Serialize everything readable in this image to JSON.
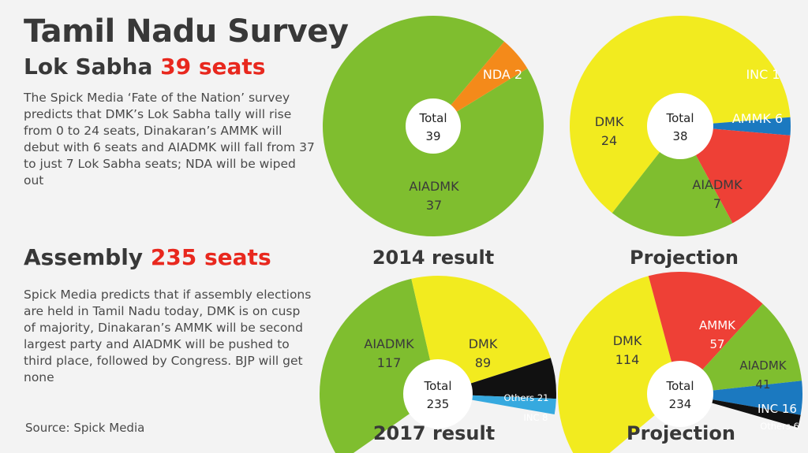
{
  "header": {
    "title": "Tamil Nadu Survey",
    "lok_sabha_prefix": "Lok Sabha",
    "lok_sabha_seats": "39 seats",
    "lok_sabha_text": "The Spick Media ‘Fate of the Nation’ survey predicts that DMK’s Lok Sabha tally will rise from 0 to 24 seats, Dinakaran’s AMMK will debut with 6 seats and AIADMK will fall from 37 to just 7 Lok Sabha seats; NDA will be wiped out",
    "assembly_prefix": "Assembly",
    "assembly_seats": "235 seats",
    "assembly_text": "Spick Media predicts that if assembly elections are held in Tamil Nadu today, DMK is on cusp of majority, Dinakaran’s AMMK will be second largest party and AIADMK will be pushed to third place, followed by Congress. BJP will get none",
    "source": "Source: Spick Media"
  },
  "colors": {
    "AIADMK": "#7fbe2f",
    "DMK": "#f2eb1f",
    "AMMK": "#ee4036",
    "NDA": "#f48a1a",
    "INC": "#1b79c0",
    "INC_light": "#36a9df",
    "Others": "#111111"
  },
  "chart_data": [
    {
      "type": "pie",
      "variant": "donut",
      "title": "2014 result",
      "center_label": "Total",
      "center_value": "39",
      "slices": [
        {
          "label": "AIADMK",
          "value": 37,
          "color_key": "AIADMK",
          "text_color": "#3a3a3a"
        },
        {
          "label": "NDA",
          "value": 2,
          "color_key": "NDA",
          "text_color": "#ffffff"
        }
      ]
    },
    {
      "type": "pie",
      "variant": "donut",
      "title": "Projection",
      "center_label": "Total",
      "center_value": "38",
      "slices": [
        {
          "label": "DMK",
          "value": 24,
          "color_key": "DMK",
          "text_color": "#3a3a3a"
        },
        {
          "label": "INC",
          "value": 1,
          "color_key": "INC",
          "text_color": "#ffffff"
        },
        {
          "label": "AMMK",
          "value": 6,
          "color_key": "AMMK",
          "text_color": "#ffffff"
        },
        {
          "label": "AIADMK",
          "value": 7,
          "color_key": "AIADMK",
          "text_color": "#3a3a3a"
        }
      ]
    },
    {
      "type": "pie",
      "variant": "semi-donut",
      "title": "2017 result",
      "center_label": "Total",
      "center_value": "235",
      "slices": [
        {
          "label": "AIADMK",
          "value": 117,
          "color_key": "AIADMK",
          "text_color": "#3a3a3a"
        },
        {
          "label": "DMK",
          "value": 89,
          "color_key": "DMK",
          "text_color": "#3a3a3a"
        },
        {
          "label": "Others",
          "value": 21,
          "color_key": "Others",
          "text_color": "#ffffff"
        },
        {
          "label": "INC",
          "value": 8,
          "color_key": "INC_light",
          "text_color": "#ffffff"
        }
      ]
    },
    {
      "type": "pie",
      "variant": "semi-donut",
      "title": "Projection",
      "center_label": "Total",
      "center_value": "234",
      "slices": [
        {
          "label": "DMK",
          "value": 114,
          "color_key": "DMK",
          "text_color": "#3a3a3a"
        },
        {
          "label": "AMMK",
          "value": 57,
          "color_key": "AMMK",
          "text_color": "#ffffff"
        },
        {
          "label": "AIADMK",
          "value": 41,
          "color_key": "AIADMK",
          "text_color": "#3a3a3a"
        },
        {
          "label": "INC",
          "value": 16,
          "color_key": "INC",
          "text_color": "#ffffff"
        },
        {
          "label": "Others",
          "value": 6,
          "color_key": "Others",
          "text_color": "#ffffff"
        }
      ]
    }
  ]
}
